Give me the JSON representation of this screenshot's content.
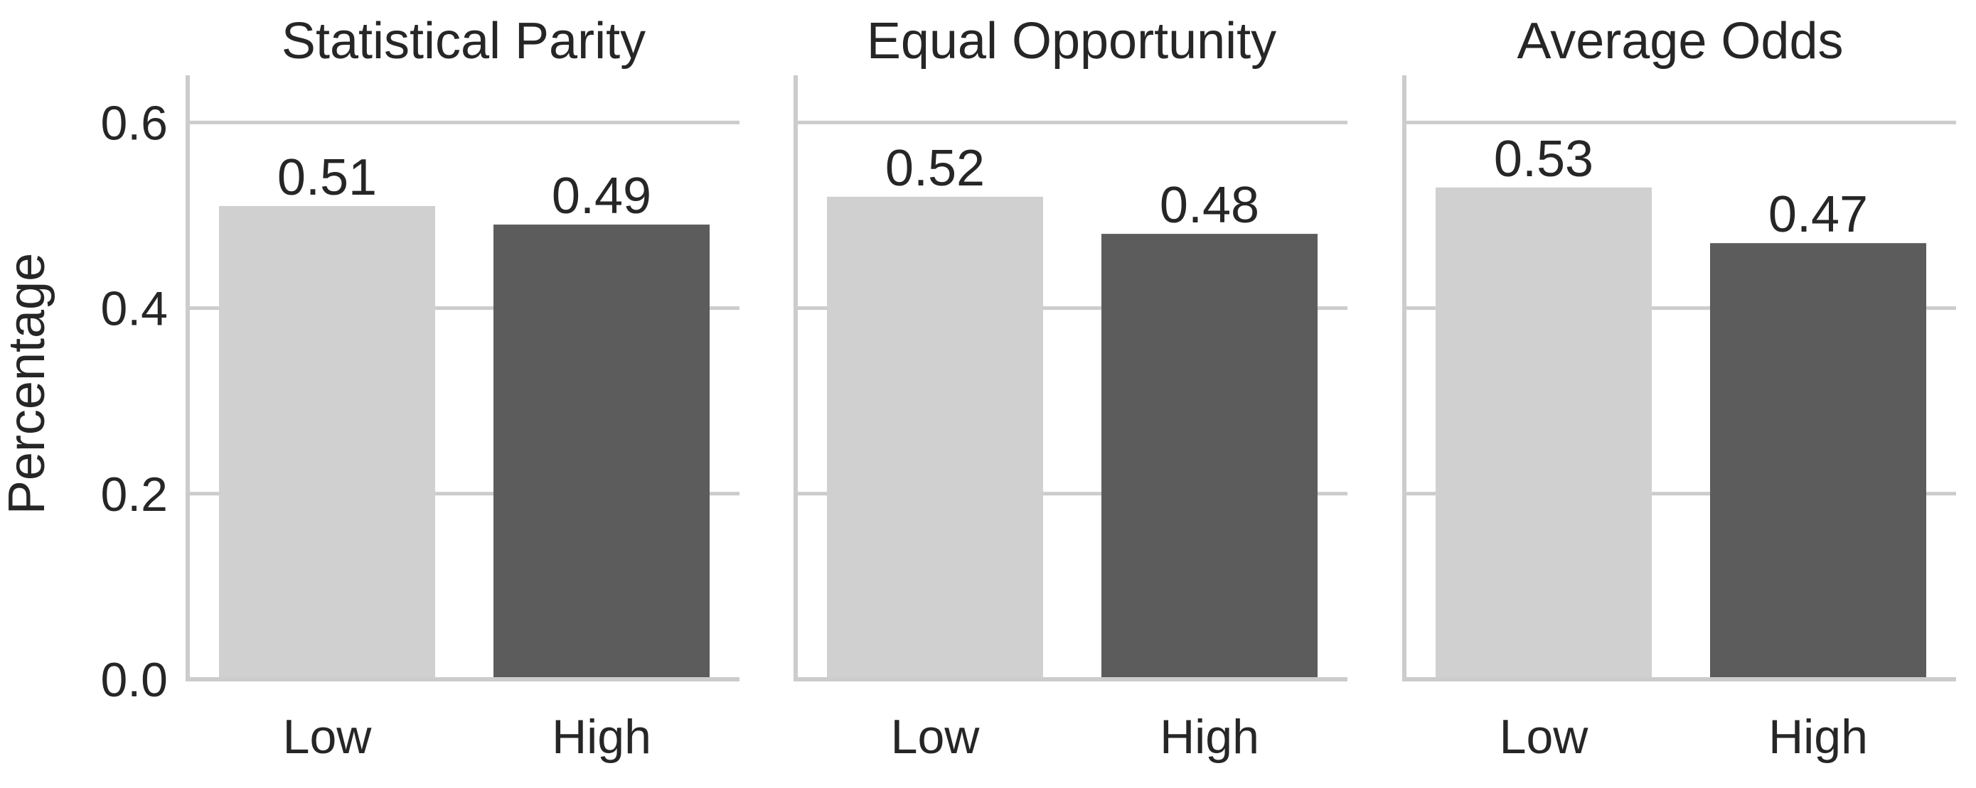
{
  "chart_data": {
    "type": "bar",
    "ylabel": "Percentage",
    "ylim": [
      0,
      0.65
    ],
    "yticks": [
      "0.0",
      "0.2",
      "0.4",
      "0.6"
    ],
    "grid": "horizontal",
    "categories": [
      "Low",
      "High"
    ],
    "colors": {
      "Low": "#d0d0d0",
      "High": "#5c5c5c",
      "grid": "#cccccc",
      "text": "#262626"
    },
    "panels": [
      {
        "title": "Statistical Parity",
        "values": [
          0.51,
          0.49
        ],
        "labels": [
          "0.51",
          "0.49"
        ]
      },
      {
        "title": "Equal Opportunity",
        "values": [
          0.52,
          0.48
        ],
        "labels": [
          "0.52",
          "0.48"
        ]
      },
      {
        "title": "Average Odds",
        "values": [
          0.53,
          0.47
        ],
        "labels": [
          "0.53",
          "0.47"
        ]
      }
    ]
  }
}
